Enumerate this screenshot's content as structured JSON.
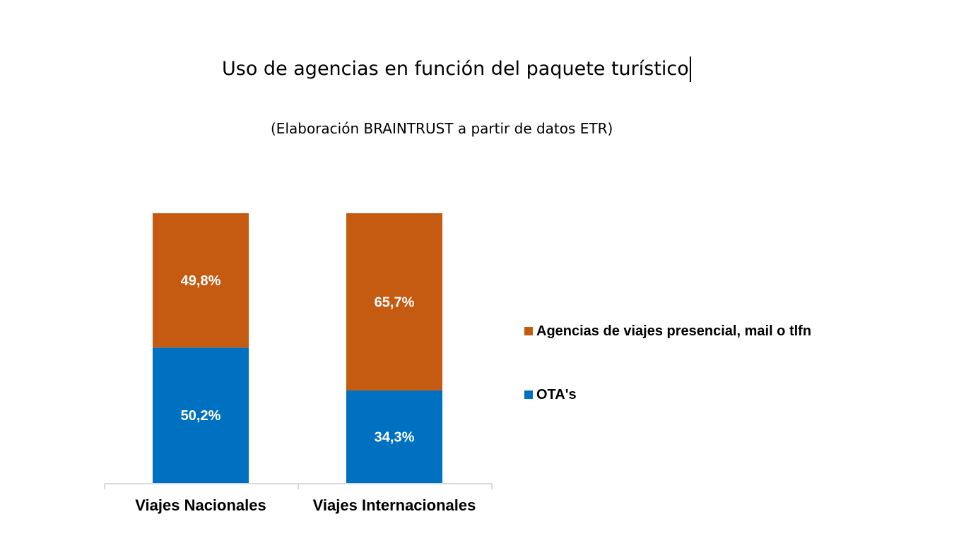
{
  "header": {
    "title": "Uso de agencias en función del paquete turístico",
    "subtitle": "(Elaboración BRAINTRUST a partir de datos ETR)"
  },
  "colors": {
    "ota": "#0070C0",
    "agencias": "#C55A11",
    "axis": "#D9D9D9",
    "bar_label": "#FFFFFF"
  },
  "legend": [
    {
      "label": "Agencias de viajes presencial, mail o tlfn",
      "color": "#C55A11"
    },
    {
      "label": "OTA's",
      "color": "#0070C0"
    }
  ],
  "chart_data": {
    "type": "bar",
    "stacked": true,
    "title": "Uso de agencias en función del paquete turístico",
    "subtitle": "(Elaboración BRAINTRUST a partir de datos ETR)",
    "categories": [
      "Viajes Nacionales",
      "Viajes Internacionales"
    ],
    "series": [
      {
        "name": "OTA's",
        "values": [
          50.2,
          34.3
        ],
        "labels": [
          "50,2%",
          "34,3%"
        ],
        "color": "#0070C0"
      },
      {
        "name": "Agencias de viajes presencial, mail o tlfn",
        "values": [
          49.8,
          65.7
        ],
        "labels": [
          "49,8%",
          "65,7%"
        ],
        "color": "#C55A11"
      }
    ],
    "ylim": [
      0,
      100
    ],
    "grid": false,
    "legend_position": "right"
  }
}
